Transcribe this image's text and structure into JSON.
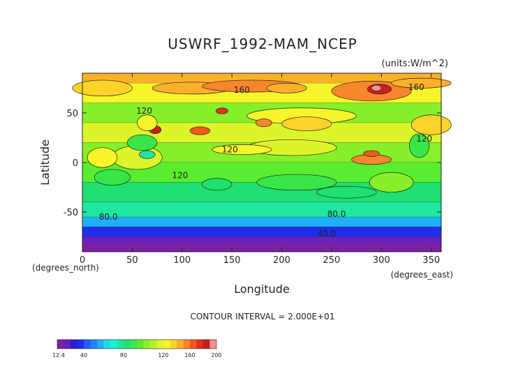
{
  "chart_data": {
    "type": "heatmap",
    "title": "USWRF_1992-MAM_NCEP",
    "units_note": "(units:W/m^2)",
    "xlabel": "Longitude",
    "ylabel": "Latitude",
    "x_unit_note": "(degrees_east)",
    "y_unit_note": "(degrees_north)",
    "xlim": [
      0,
      360
    ],
    "ylim": [
      -90,
      90
    ],
    "x_ticks": [
      0,
      50,
      100,
      150,
      200,
      250,
      300,
      350
    ],
    "y_ticks": [
      50,
      0,
      -50
    ],
    "footer": "CONTOUR INTERVAL = 2.000E+01",
    "contour_labels": [
      {
        "text": "160",
        "lon": 160,
        "lat": 73
      },
      {
        "text": "160",
        "lon": 335,
        "lat": 76
      },
      {
        "text": "120",
        "lon": 62,
        "lat": 52
      },
      {
        "text": "120",
        "lon": 148,
        "lat": 13
      },
      {
        "text": "120",
        "lon": 98,
        "lat": -13
      },
      {
        "text": "120",
        "lon": 343,
        "lat": 24
      },
      {
        "text": "80.0",
        "lon": 26,
        "lat": -55
      },
      {
        "text": "80.0",
        "lon": 255,
        "lat": -52
      },
      {
        "text": "40.0",
        "lon": 245,
        "lat": -72
      }
    ],
    "bands_by_latitude": [
      {
        "lat": [
          80,
          90
        ],
        "value": 170
      },
      {
        "lat": [
          60,
          80
        ],
        "value": 150
      },
      {
        "lat": [
          40,
          60
        ],
        "value": 125
      },
      {
        "lat": [
          20,
          40
        ],
        "value": 140
      },
      {
        "lat": [
          0,
          20
        ],
        "value": 125
      },
      {
        "lat": [
          -20,
          0
        ],
        "value": 115
      },
      {
        "lat": [
          -40,
          -20
        ],
        "value": 105
      },
      {
        "lat": [
          -55,
          -40
        ],
        "value": 90
      },
      {
        "lat": [
          -65,
          -55
        ],
        "value": 70
      },
      {
        "lat": [
          -75,
          -65
        ],
        "value": 45
      },
      {
        "lat": [
          -82,
          -75
        ],
        "value": 25
      },
      {
        "lat": [
          -90,
          -82
        ],
        "value": 14
      }
    ],
    "colorbar": {
      "labels": [
        "12.4",
        "40",
        "80",
        "120",
        "160",
        "200"
      ],
      "colors": [
        "#7d1fa3",
        "#6a1fc0",
        "#2b1fd0",
        "#1f2ee8",
        "#1f5ef5",
        "#1f86f8",
        "#1fb0f8",
        "#1fd4f0",
        "#1ff0d0",
        "#1fe6a0",
        "#1fe070",
        "#39e64a",
        "#5aec2e",
        "#86f02a",
        "#b2f22a",
        "#dcf52a",
        "#f6f52a",
        "#fbd42a",
        "#fbb02a",
        "#f8862a",
        "#f05a1f",
        "#e0321f",
        "#c81f1f",
        "#f09090"
      ]
    }
  }
}
